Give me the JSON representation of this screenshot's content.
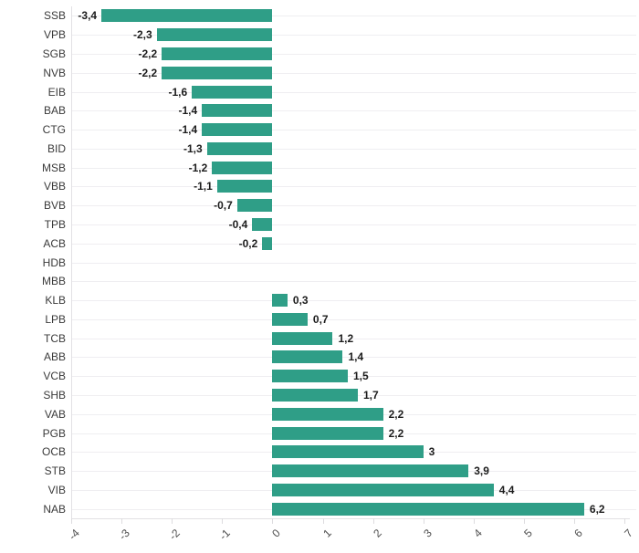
{
  "chart_data": {
    "type": "bar",
    "orientation": "horizontal",
    "title": "",
    "xlabel": "",
    "ylabel": "",
    "xlim": [
      -4,
      7
    ],
    "grid": true,
    "legend": false,
    "bar_color": "#2f9e87",
    "categories": [
      "SSB",
      "VPB",
      "SGB",
      "NVB",
      "EIB",
      "BAB",
      "CTG",
      "BID",
      "MSB",
      "VBB",
      "BVB",
      "TPB",
      "ACB",
      "HDB",
      "MBB",
      "KLB",
      "LPB",
      "TCB",
      "ABB",
      "VCB",
      "SHB",
      "VAB",
      "PGB",
      "OCB",
      "STB",
      "VIB",
      "NAB"
    ],
    "values": [
      -3.4,
      -2.3,
      -2.2,
      -2.2,
      -1.6,
      -1.4,
      -1.4,
      -1.3,
      -1.2,
      -1.1,
      -0.7,
      -0.4,
      -0.2,
      0,
      0,
      0.3,
      0.7,
      1.2,
      1.4,
      1.5,
      1.7,
      2.2,
      2.2,
      3,
      3.9,
      4.4,
      6.2
    ],
    "value_labels": [
      "-3,4",
      "-2,3",
      "-2,2",
      "-2,2",
      "-1,6",
      "-1,4",
      "-1,4",
      "-1,3",
      "-1,2",
      "-1,1",
      "-0,7",
      "-0,4",
      "-0,2",
      "",
      "",
      "0,3",
      "0,7",
      "1,2",
      "1,4",
      "1,5",
      "1,7",
      "2,2",
      "2,2",
      "3",
      "3,9",
      "4,4",
      "6,2"
    ],
    "x_tick_labels": [
      "-4",
      "-3",
      "-2",
      "-1",
      "0",
      "1",
      "2",
      "3",
      "4",
      "5",
      "6",
      "7"
    ],
    "x_tick_values": [
      -4,
      -3,
      -2,
      -1,
      0,
      1,
      2,
      3,
      4,
      5,
      6,
      7
    ]
  }
}
